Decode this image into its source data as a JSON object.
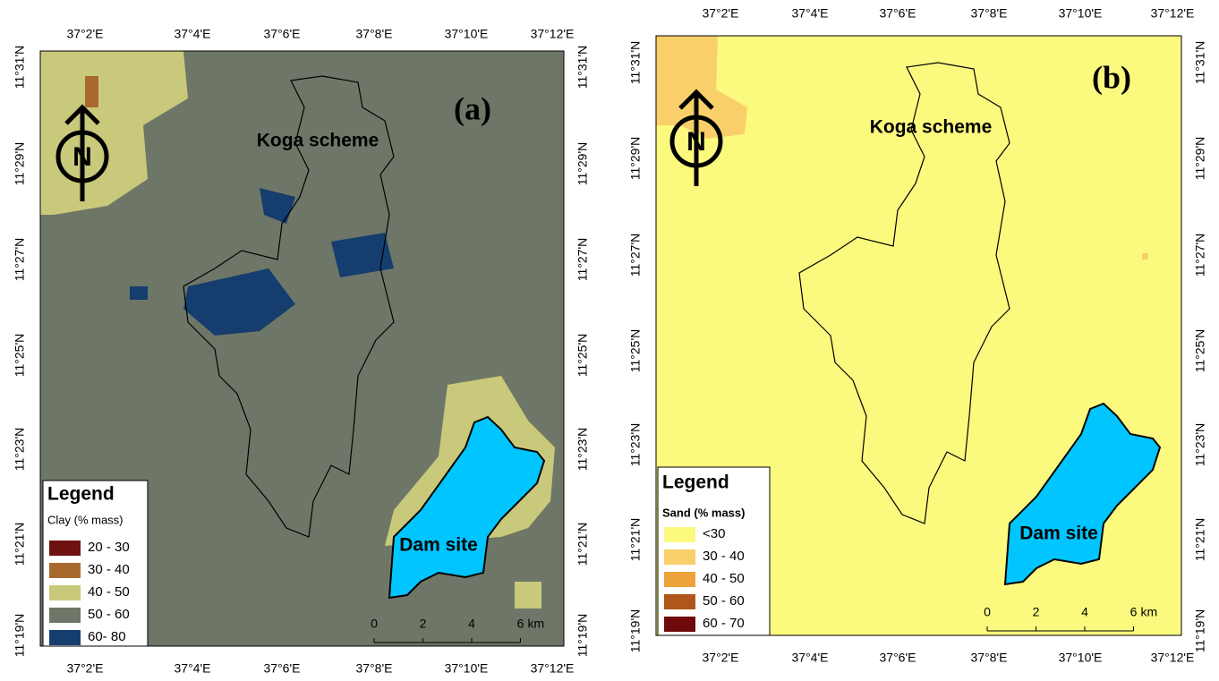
{
  "panels": [
    {
      "label": "(a)",
      "x_ticks": [
        "37°2'E",
        "37°4'E",
        "37°6'E",
        "37°8'E",
        "37°10'E",
        "37°12'E"
      ],
      "y_ticks": [
        "11°31'N",
        "11°29'N",
        "11°27'N",
        "11°25'N",
        "11°23'N",
        "11°21'N",
        "11°19'N"
      ],
      "north": "N",
      "scheme_label": "Koga scheme",
      "dam_label": "Dam site",
      "legend": {
        "title": "Legend",
        "subtitle": "Clay (% mass)",
        "items": [
          {
            "label": "20 - 30",
            "color": "#6e1212"
          },
          {
            "label": "30 - 40",
            "color": "#a8692f"
          },
          {
            "label": "40 - 50",
            "color": "#c9c97b"
          },
          {
            "label": "50 - 60",
            "color": "#6e7767"
          },
          {
            "label": "60- 80",
            "color": "#153d6e"
          }
        ]
      },
      "scale": {
        "labels": [
          "0",
          "2",
          "4",
          "6"
        ],
        "unit": "km"
      }
    },
    {
      "label": "(b)",
      "x_ticks": [
        "37°2'E",
        "37°4'E",
        "37°6'E",
        "37°8'E",
        "37°10'E",
        "37°12'E"
      ],
      "y_ticks": [
        "11°31'N",
        "11°29'N",
        "11°27'N",
        "11°25'N",
        "11°23'N",
        "11°21'N",
        "11°19'N"
      ],
      "north": "N",
      "scheme_label": "Koga scheme",
      "dam_label": "Dam site",
      "legend": {
        "title": "Legend",
        "subtitle": "Sand (% mass)",
        "items": [
          {
            "label": "<30",
            "color": "#fcf97f"
          },
          {
            "label": "30 - 40",
            "color": "#f8cf68"
          },
          {
            "label": "40 - 50",
            "color": "#eda23a"
          },
          {
            "label": "50 - 60",
            "color": "#b0561b"
          },
          {
            "label": "60 - 70",
            "color": "#6e0a0a"
          }
        ]
      },
      "scale": {
        "labels": [
          "0",
          "2",
          "4",
          "6"
        ],
        "unit": "km"
      }
    }
  ]
}
